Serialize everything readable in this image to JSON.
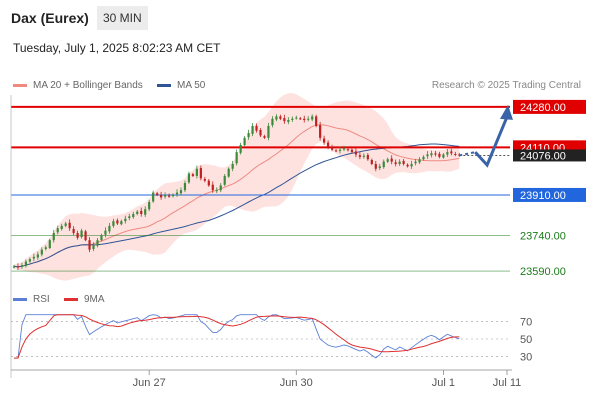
{
  "header": {
    "instrument": "Dax (Eurex)",
    "timeframe": "30 MIN",
    "datetime": "Tuesday, July 1, 2025 8:02:23 AM CET",
    "credit": "Research © 2025 Trading Central"
  },
  "colors": {
    "ma20": "#f08a80",
    "ma50": "#2f5596",
    "bollinger_fill": "#fde2e0",
    "up_candle": "#3a8a3a",
    "down_candle": "#c02020",
    "resistance": "#e00000",
    "support_blue": "#2266dd",
    "support_green": "#1a7a1a",
    "forecast": "#3a64a8",
    "rsi": "#5b7fd6",
    "rsi_ma": "#e03030",
    "current_price_tag": "#222222"
  },
  "chart_data": [
    {
      "type": "candlestick",
      "legend": [
        {
          "name": "MA 20 + Bollinger Bands",
          "color": "#f08a80"
        },
        {
          "name": "MA 50",
          "color": "#2f5596"
        }
      ],
      "x_ticks": [
        {
          "label": "Jun 27",
          "index": 34
        },
        {
          "label": "Jun 30",
          "index": 71
        },
        {
          "label": "Jul 1",
          "index": 108
        },
        {
          "label": "Jul 11",
          "index": 124
        }
      ],
      "ylim": [
        23540,
        24330
      ],
      "current_price": {
        "label": "24076.00",
        "value": 24076
      },
      "levels": [
        {
          "label": "24280.00",
          "value": 24280,
          "kind": "resistance"
        },
        {
          "label": "24110.00",
          "value": 24110,
          "kind": "resistance"
        },
        {
          "label": "23910.00",
          "value": 23910,
          "kind": "support"
        },
        {
          "label": "23740.00",
          "value": 23740,
          "kind": "support-weak"
        },
        {
          "label": "23590.00",
          "value": 23590,
          "kind": "support-weak"
        }
      ],
      "close": [
        23610,
        23605,
        23615,
        23630,
        23640,
        23650,
        23660,
        23680,
        23690,
        23720,
        23750,
        23770,
        23780,
        23790,
        23770,
        23750,
        23730,
        23760,
        23720,
        23680,
        23700,
        23720,
        23740,
        23760,
        23780,
        23800,
        23790,
        23800,
        23810,
        23820,
        23830,
        23840,
        23830,
        23850,
        23880,
        23920,
        23910,
        23900,
        23910,
        23905,
        23910,
        23920,
        23930,
        23960,
        24000,
        23990,
        24020,
        23980,
        23970,
        23950,
        23930,
        23930,
        23950,
        23990,
        24020,
        24040,
        24090,
        24120,
        24150,
        24170,
        24200,
        24180,
        24160,
        24150,
        24200,
        24230,
        24240,
        24230,
        24220,
        24225,
        24230,
        24235,
        24230,
        24225,
        24230,
        24240,
        24200,
        24150,
        24130,
        24110,
        24100,
        24095,
        24100,
        24105,
        24100,
        24090,
        24080,
        24070,
        24075,
        24060,
        24040,
        24020,
        24030,
        24050,
        24060,
        24050,
        24040,
        24050,
        24040,
        24030,
        24040,
        24050,
        24060,
        24070,
        24080,
        24085,
        24080,
        24070,
        24080,
        24090,
        24085,
        24080,
        24076
      ],
      "forecast_path": [
        {
          "index": 112,
          "value": 24076
        },
        {
          "index": 116,
          "value": 24090
        },
        {
          "index": 119,
          "value": 24036
        },
        {
          "index": 124,
          "value": 24280
        }
      ]
    },
    {
      "type": "line",
      "legend": [
        {
          "name": "RSI",
          "color": "#5b7fd6"
        },
        {
          "name": "9MA",
          "color": "#e03030"
        }
      ],
      "ylim": [
        20,
        80
      ],
      "y_ticks": [
        {
          "label": "70",
          "value": 70
        },
        {
          "label": "50",
          "value": 50
        },
        {
          "label": "30",
          "value": 30
        }
      ]
    }
  ]
}
